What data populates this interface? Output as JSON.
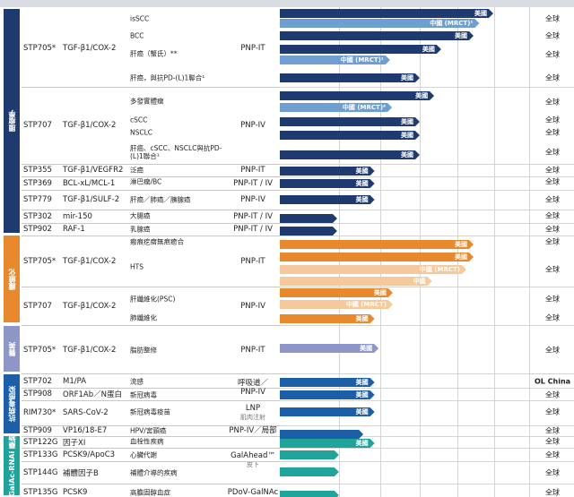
{
  "colors": {
    "oncology": "#1f3a6e",
    "oncology_light": "#6f9fd0",
    "fibrosis": "#e8892e",
    "fibrosis_light": "#f5c99c",
    "aesthetics": "#8e96c8",
    "antiviral": "#1d5ea8",
    "galahead": "#1fa39a"
  },
  "groups": [
    {
      "category": "腫瘤學",
      "color_key": "oncology",
      "programs": [
        {
          "code": "STP705*",
          "target": "TGF-β1/COX-2",
          "delivery": "PNP-IT",
          "indications": [
            {
              "name": "isSCC",
              "region": "全球",
              "bars": [
                {
                  "label": "美國",
                  "progress": 0.856,
                  "tone": "dark"
                },
                {
                  "label": "中國 (MRCT)¹",
                  "progress": 0.8,
                  "tone": "light"
                }
              ]
            },
            {
              "name": "BCC",
              "region": "全球",
              "bars": [
                {
                  "label": "美國",
                  "progress": 0.777,
                  "tone": "dark"
                }
              ]
            },
            {
              "name": "肝癌（蟹氏）**",
              "region": "全球",
              "bars": [
                {
                  "label": "美國",
                  "progress": 0.647,
                  "tone": "dark"
                },
                {
                  "label": "中國 (MRCT)¹",
                  "progress": 0.442,
                  "tone": "light"
                }
              ]
            },
            {
              "name": "肝癌，與抗PD-(L)1聯合¹",
              "region": "全球",
              "bars": [
                {
                  "label": "美國",
                  "progress": 0.561,
                  "tone": "dark"
                }
              ]
            }
          ]
        },
        {
          "code": "STP707",
          "target": "TGF-β1/COX-2",
          "delivery": "PNP-IV",
          "indications": [
            {
              "name": "多發實體瘤",
              "region": "全球",
              "bars": [
                {
                  "label": "美國",
                  "progress": 0.619,
                  "tone": "dark"
                },
                {
                  "label": "中國 (MRCT)⁴",
                  "progress": 0.45,
                  "tone": "light"
                }
              ]
            },
            {
              "name": "cSCC",
              "region": "全球",
              "bars": [
                {
                  "label": "美國",
                  "progress": 0.561,
                  "tone": "dark"
                }
              ]
            },
            {
              "name": "NSCLC",
              "region": "全球",
              "bars": [
                {
                  "label": "美國",
                  "progress": 0.561,
                  "tone": "dark"
                }
              ]
            },
            {
              "name": "肝癌、cSCC、NSCLC與抗PD-(L)1聯合¹",
              "region": "全球",
              "bars": [
                {
                  "label": "美國",
                  "progress": 0.561,
                  "tone": "dark"
                }
              ]
            }
          ]
        },
        {
          "code": "STP355",
          "target": "TGF-β1/VEGFR2",
          "delivery": "PNP-IT",
          "indications": [
            {
              "name": "泛癌",
              "region": "全球",
              "bars": [
                {
                  "label": "美國",
                  "progress": 0.38,
                  "tone": "dark"
                }
              ]
            }
          ]
        },
        {
          "code": "STP369",
          "target": "BCL-xL/MCL-1",
          "delivery": "PNP-IT / IV",
          "indications": [
            {
              "name": "淋巴瘤/BC",
              "region": "全球",
              "bars": [
                {
                  "label": "美國",
                  "progress": 0.38,
                  "tone": "dark"
                }
              ]
            }
          ]
        },
        {
          "code": "STP779",
          "target": "TGF-β1/SULF-2",
          "delivery": "PNP-IV",
          "indications": [
            {
              "name": "肝癌／肺癌／胰腺癌",
              "region": "全球",
              "bars": [
                {
                  "label": "美國",
                  "progress": 0.38,
                  "tone": "dark"
                }
              ]
            }
          ]
        },
        {
          "code": "STP302",
          "target": "mir-150",
          "delivery": "PNP-IT / IV",
          "indications": [
            {
              "name": "大腸癌",
              "region": "全球",
              "bars": [
                {
                  "label": "",
                  "progress": 0.23,
                  "tone": "dark"
                }
              ]
            }
          ]
        },
        {
          "code": "STP902",
          "target": "RAF-1",
          "delivery": "PNP-IT / IV",
          "indications": [
            {
              "name": "乳腺癌",
              "region": "全球",
              "bars": [
                {
                  "label": "",
                  "progress": 0.23,
                  "tone": "dark"
                }
              ]
            }
          ]
        }
      ]
    },
    {
      "category": "纖維化",
      "color_key": "fibrosis",
      "programs": [
        {
          "code": "STP705*",
          "target": "TGF-β1/COX-2",
          "delivery": "PNP-IT",
          "indications": [
            {
              "name": "瘢痕疙瘩無疤癒合",
              "region": "全球",
              "bars": [
                {
                  "label": "美國",
                  "progress": 0.777,
                  "tone": "dark"
                }
              ]
            },
            {
              "name": "HTS",
              "region": "全球",
              "bars": [
                {
                  "label": "美國",
                  "progress": 0.777,
                  "tone": "dark"
                },
                {
                  "label": "中國 (MRCT)",
                  "progress": 0.748,
                  "tone": "light"
                },
                {
                  "label": "中國",
                  "progress": 0.61,
                  "tone": "light"
                }
              ]
            }
          ]
        },
        {
          "code": "STP707",
          "target": "TGF-β1/COX-2",
          "delivery": "PNP-IV",
          "indications": [
            {
              "name": "肝纖維化(PSC)",
              "region": "全球",
              "bars": [
                {
                  "label": "美國",
                  "progress": 0.453,
                  "tone": "dark"
                },
                {
                  "label": "中國 (MRCT)",
                  "progress": 0.453,
                  "tone": "light"
                }
              ]
            },
            {
              "name": "肺纖維化",
              "region": "全球",
              "bars": [
                {
                  "label": "美國",
                  "progress": 0.38,
                  "tone": "dark"
                }
              ]
            }
          ]
        }
      ]
    },
    {
      "category": "醫美",
      "color_key": "aesthetics",
      "programs": [
        {
          "code": "STP705*",
          "target": "TGF-β1/COX-2",
          "delivery": "PNP-IT",
          "indications": [
            {
              "name": "脂肪整修",
              "region": "全球",
              "bars": [
                {
                  "label": "美國",
                  "progress": 0.396,
                  "tone": "dark"
                }
              ]
            }
          ]
        }
      ]
    },
    {
      "category": "抗病毒感染",
      "color_key": "antiviral",
      "programs": [
        {
          "code": "STP702",
          "target": "M1/PA",
          "delivery": "呼吸道／\nPNP-IV",
          "indications": [
            {
              "name": "流感",
              "region": "OL China",
              "bars": [
                {
                  "label": "美國",
                  "progress": 0.38,
                  "tone": "dark"
                }
              ]
            }
          ]
        },
        {
          "code": "STP908",
          "target": "ORF1Ab／N蛋白",
          "delivery": "",
          "indications": [
            {
              "name": "新冠病毒",
              "region": "全球",
              "bars": [
                {
                  "label": "美國",
                  "progress": 0.38,
                  "tone": "dark"
                }
              ]
            }
          ]
        },
        {
          "code": "RIM730*",
          "target": "SARS-CoV-2",
          "delivery": "LNP\n肌肉注射",
          "indications": [
            {
              "name": "新冠病毒疫苗",
              "region": "全球",
              "bars": [
                {
                  "label": "美國",
                  "progress": 0.38,
                  "tone": "dark"
                }
              ]
            }
          ]
        },
        {
          "code": "STP909",
          "target": "VP16/18-E7",
          "delivery": "PNP-IV／局部",
          "indications": [
            {
              "name": "HPV/宮頸癌",
              "region": "全球",
              "bars": [
                {
                  "label": "",
                  "progress": 0.335,
                  "tone": "dark"
                }
              ]
            }
          ]
        }
      ]
    },
    {
      "category": "GalAc-RNAi 藥物",
      "color_key": "galahead",
      "programs": [
        {
          "code": "STP122G",
          "target": "因子XI",
          "delivery": "GalAhead™\n皮下",
          "indications": [
            {
              "name": "血栓性疾病",
              "region": "全球",
              "bars": [
                {
                  "label": "美國",
                  "progress": 0.38,
                  "tone": "dark"
                }
              ]
            }
          ]
        },
        {
          "code": "STP133G",
          "target": "PCSK9/ApoC3",
          "delivery": "",
          "indications": [
            {
              "name": "心臟代謝",
              "region": "全球",
              "bars": [
                {
                  "label": "",
                  "progress": 0.237,
                  "tone": "dark"
                }
              ]
            }
          ]
        },
        {
          "code": "STP144G",
          "target": "補體因子B",
          "delivery": "",
          "indications": [
            {
              "name": "補體介導的疾病",
              "region": "全球",
              "bars": [
                {
                  "label": "",
                  "progress": 0.237,
                  "tone": "dark"
                }
              ]
            }
          ]
        },
        {
          "code": "STP135G",
          "target": "PCSK9",
          "delivery": "PDoV-GalNAc",
          "indications": [
            {
              "name": "高膽固醇血症",
              "region": "全球",
              "bars": [
                {
                  "label": "",
                  "progress": 0.237,
                  "tone": "dark"
                }
              ]
            }
          ]
        }
      ]
    }
  ]
}
